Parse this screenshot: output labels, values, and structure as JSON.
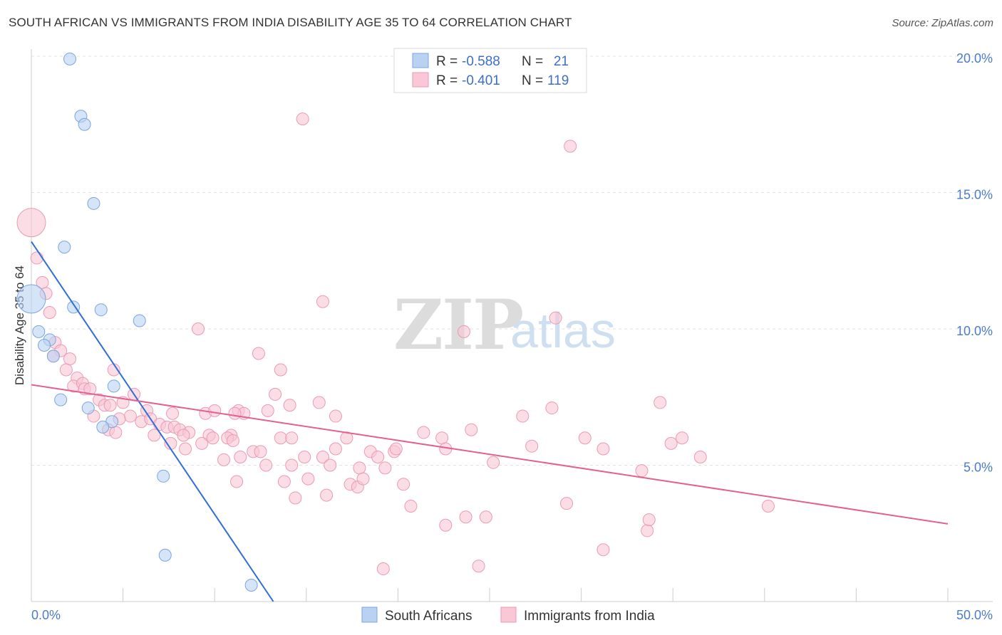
{
  "header": {
    "title": "SOUTH AFRICAN VS IMMIGRANTS FROM INDIA DISABILITY AGE 35 TO 64 CORRELATION CHART",
    "source": "Source: ZipAtlas.com"
  },
  "watermark": {
    "zip": "ZIP",
    "atlas": "atlas"
  },
  "colors": {
    "blue_fill": "#b9d2f2",
    "blue_stroke": "#7aa6e0",
    "blue_line": "#2f6fd6",
    "pink_fill": "#f9c7d6",
    "pink_stroke": "#ec9ab5",
    "pink_line": "#e4608f",
    "grid": "#e3e3e3",
    "tick_label": "#4a7cc9"
  },
  "legend": {
    "rows": [
      {
        "r_label": "R = ",
        "r_value": "-0.588",
        "n_label": "N = ",
        "n_value": "21"
      },
      {
        "r_label": "R = ",
        "r_value": "-0.401",
        "n_label": "N = ",
        "n_value": "119"
      }
    ]
  },
  "bottom_legend": [
    "South Africans",
    "Immigrants from India"
  ],
  "chart_data": {
    "type": "scatter",
    "title": "SOUTH AFRICAN VS IMMIGRANTS FROM INDIA DISABILITY AGE 35 TO 64 CORRELATION CHART",
    "xlabel": "",
    "ylabel": "Disability Age 35 to 64",
    "xlim": [
      0,
      50
    ],
    "ylim": [
      0,
      20.5
    ],
    "x_tick_labels": [
      "0.0%",
      "50.0%"
    ],
    "y_ticks": [
      5,
      10,
      15,
      20
    ],
    "y_tick_labels": [
      "5.0%",
      "10.0%",
      "15.0%",
      "20.0%"
    ],
    "grid": "horizontal dashed",
    "legend_placement": "top-center",
    "series": [
      {
        "name": "South Africans",
        "color": "#b9d2f2",
        "regression": {
          "x": [
            0,
            13.2
          ],
          "y": [
            13.2,
            0
          ]
        },
        "points": [
          {
            "x": 0.0,
            "y": 11.1,
            "big": true
          },
          {
            "x": 2.1,
            "y": 19.9
          },
          {
            "x": 2.7,
            "y": 17.8
          },
          {
            "x": 2.9,
            "y": 17.5
          },
          {
            "x": 3.4,
            "y": 14.6
          },
          {
            "x": 1.8,
            "y": 13.0
          },
          {
            "x": 2.3,
            "y": 10.8
          },
          {
            "x": 3.8,
            "y": 10.7
          },
          {
            "x": 5.9,
            "y": 10.3
          },
          {
            "x": 0.4,
            "y": 9.9
          },
          {
            "x": 1.0,
            "y": 9.6
          },
          {
            "x": 0.7,
            "y": 9.4
          },
          {
            "x": 1.2,
            "y": 9.0
          },
          {
            "x": 4.5,
            "y": 7.9
          },
          {
            "x": 1.6,
            "y": 7.4
          },
          {
            "x": 3.1,
            "y": 7.1
          },
          {
            "x": 4.4,
            "y": 6.6
          },
          {
            "x": 3.9,
            "y": 6.4
          },
          {
            "x": 7.2,
            "y": 4.6
          },
          {
            "x": 7.3,
            "y": 1.7
          },
          {
            "x": 12.0,
            "y": 0.6
          }
        ]
      },
      {
        "name": "Immigrants from India",
        "color": "#f9c7d6",
        "regression": {
          "x": [
            0,
            50
          ],
          "y": [
            7.95,
            2.85
          ]
        },
        "points": [
          {
            "x": 0.0,
            "y": 13.9,
            "big": true
          },
          {
            "x": 0.3,
            "y": 12.6
          },
          {
            "x": 0.6,
            "y": 11.7
          },
          {
            "x": 0.8,
            "y": 11.3
          },
          {
            "x": 1.0,
            "y": 10.6
          },
          {
            "x": 1.3,
            "y": 9.5
          },
          {
            "x": 1.6,
            "y": 9.2
          },
          {
            "x": 1.2,
            "y": 9.0
          },
          {
            "x": 2.1,
            "y": 8.9
          },
          {
            "x": 1.9,
            "y": 8.5
          },
          {
            "x": 2.5,
            "y": 8.2
          },
          {
            "x": 2.3,
            "y": 7.9
          },
          {
            "x": 2.8,
            "y": 8.0
          },
          {
            "x": 2.9,
            "y": 7.8
          },
          {
            "x": 3.2,
            "y": 7.8
          },
          {
            "x": 3.7,
            "y": 7.4
          },
          {
            "x": 4.0,
            "y": 7.2
          },
          {
            "x": 4.3,
            "y": 7.2
          },
          {
            "x": 5.0,
            "y": 7.3
          },
          {
            "x": 5.6,
            "y": 7.6
          },
          {
            "x": 6.3,
            "y": 7.0
          },
          {
            "x": 3.4,
            "y": 6.8
          },
          {
            "x": 5.4,
            "y": 6.8
          },
          {
            "x": 4.8,
            "y": 6.7
          },
          {
            "x": 6.0,
            "y": 6.6
          },
          {
            "x": 6.5,
            "y": 6.7
          },
          {
            "x": 7.0,
            "y": 6.5
          },
          {
            "x": 7.4,
            "y": 6.4
          },
          {
            "x": 7.8,
            "y": 6.4
          },
          {
            "x": 4.2,
            "y": 6.3
          },
          {
            "x": 4.6,
            "y": 6.2
          },
          {
            "x": 6.7,
            "y": 6.1
          },
          {
            "x": 8.1,
            "y": 6.3
          },
          {
            "x": 8.6,
            "y": 6.2
          },
          {
            "x": 8.3,
            "y": 6.1
          },
          {
            "x": 9.7,
            "y": 6.1
          },
          {
            "x": 9.9,
            "y": 6.0
          },
          {
            "x": 7.6,
            "y": 5.8
          },
          {
            "x": 9.3,
            "y": 5.8
          },
          {
            "x": 8.4,
            "y": 5.6
          },
          {
            "x": 4.5,
            "y": 8.5
          },
          {
            "x": 7.7,
            "y": 6.9
          },
          {
            "x": 9.5,
            "y": 6.9
          },
          {
            "x": 10.0,
            "y": 7.0
          },
          {
            "x": 11.3,
            "y": 7.0
          },
          {
            "x": 11.6,
            "y": 6.9
          },
          {
            "x": 12.9,
            "y": 7.0
          },
          {
            "x": 13.3,
            "y": 7.6
          },
          {
            "x": 14.1,
            "y": 7.2
          },
          {
            "x": 15.7,
            "y": 7.3
          },
          {
            "x": 16.6,
            "y": 6.8
          },
          {
            "x": 13.6,
            "y": 6.0
          },
          {
            "x": 14.2,
            "y": 6.0
          },
          {
            "x": 17.2,
            "y": 6.0
          },
          {
            "x": 11.1,
            "y": 6.9
          },
          {
            "x": 10.9,
            "y": 6.1
          },
          {
            "x": 10.7,
            "y": 6.0
          },
          {
            "x": 11.0,
            "y": 5.9
          },
          {
            "x": 12.4,
            "y": 9.1
          },
          {
            "x": 13.6,
            "y": 8.5
          },
          {
            "x": 9.1,
            "y": 10.0
          },
          {
            "x": 15.9,
            "y": 11.0
          },
          {
            "x": 14.8,
            "y": 17.7
          },
          {
            "x": 23.6,
            "y": 9.9
          },
          {
            "x": 28.6,
            "y": 10.4
          },
          {
            "x": 29.4,
            "y": 16.7
          },
          {
            "x": 10.5,
            "y": 5.2
          },
          {
            "x": 11.4,
            "y": 5.3
          },
          {
            "x": 12.1,
            "y": 5.5
          },
          {
            "x": 12.5,
            "y": 5.5
          },
          {
            "x": 12.8,
            "y": 5.0
          },
          {
            "x": 14.2,
            "y": 5.0
          },
          {
            "x": 14.9,
            "y": 5.3
          },
          {
            "x": 15.9,
            "y": 5.3
          },
          {
            "x": 16.6,
            "y": 5.6
          },
          {
            "x": 16.3,
            "y": 5.0
          },
          {
            "x": 18.5,
            "y": 5.5
          },
          {
            "x": 18.9,
            "y": 5.3
          },
          {
            "x": 19.8,
            "y": 5.5
          },
          {
            "x": 19.9,
            "y": 5.6
          },
          {
            "x": 17.9,
            "y": 4.9
          },
          {
            "x": 19.3,
            "y": 4.9
          },
          {
            "x": 11.2,
            "y": 4.4
          },
          {
            "x": 13.8,
            "y": 4.4
          },
          {
            "x": 15.1,
            "y": 4.5
          },
          {
            "x": 17.4,
            "y": 4.3
          },
          {
            "x": 17.8,
            "y": 4.2
          },
          {
            "x": 18.1,
            "y": 4.5
          },
          {
            "x": 20.3,
            "y": 4.3
          },
          {
            "x": 14.4,
            "y": 3.8
          },
          {
            "x": 16.1,
            "y": 3.9
          },
          {
            "x": 21.4,
            "y": 6.2
          },
          {
            "x": 22.4,
            "y": 6.0
          },
          {
            "x": 22.6,
            "y": 5.6
          },
          {
            "x": 24.0,
            "y": 6.3
          },
          {
            "x": 25.2,
            "y": 5.1
          },
          {
            "x": 26.8,
            "y": 6.8
          },
          {
            "x": 28.4,
            "y": 7.1
          },
          {
            "x": 27.3,
            "y": 5.7
          },
          {
            "x": 30.2,
            "y": 6.0
          },
          {
            "x": 31.2,
            "y": 5.6
          },
          {
            "x": 20.7,
            "y": 3.5
          },
          {
            "x": 22.6,
            "y": 2.8
          },
          {
            "x": 23.7,
            "y": 3.1
          },
          {
            "x": 24.8,
            "y": 3.1
          },
          {
            "x": 29.2,
            "y": 3.6
          },
          {
            "x": 31.2,
            "y": 1.9
          },
          {
            "x": 33.3,
            "y": 4.8
          },
          {
            "x": 34.3,
            "y": 7.3
          },
          {
            "x": 35.5,
            "y": 6.0
          },
          {
            "x": 34.9,
            "y": 5.8
          },
          {
            "x": 36.5,
            "y": 5.3
          },
          {
            "x": 33.6,
            "y": 2.6
          },
          {
            "x": 33.7,
            "y": 3.0
          },
          {
            "x": 40.2,
            "y": 3.5
          },
          {
            "x": 19.2,
            "y": 1.2
          },
          {
            "x": 24.4,
            "y": 1.3
          }
        ]
      }
    ]
  }
}
